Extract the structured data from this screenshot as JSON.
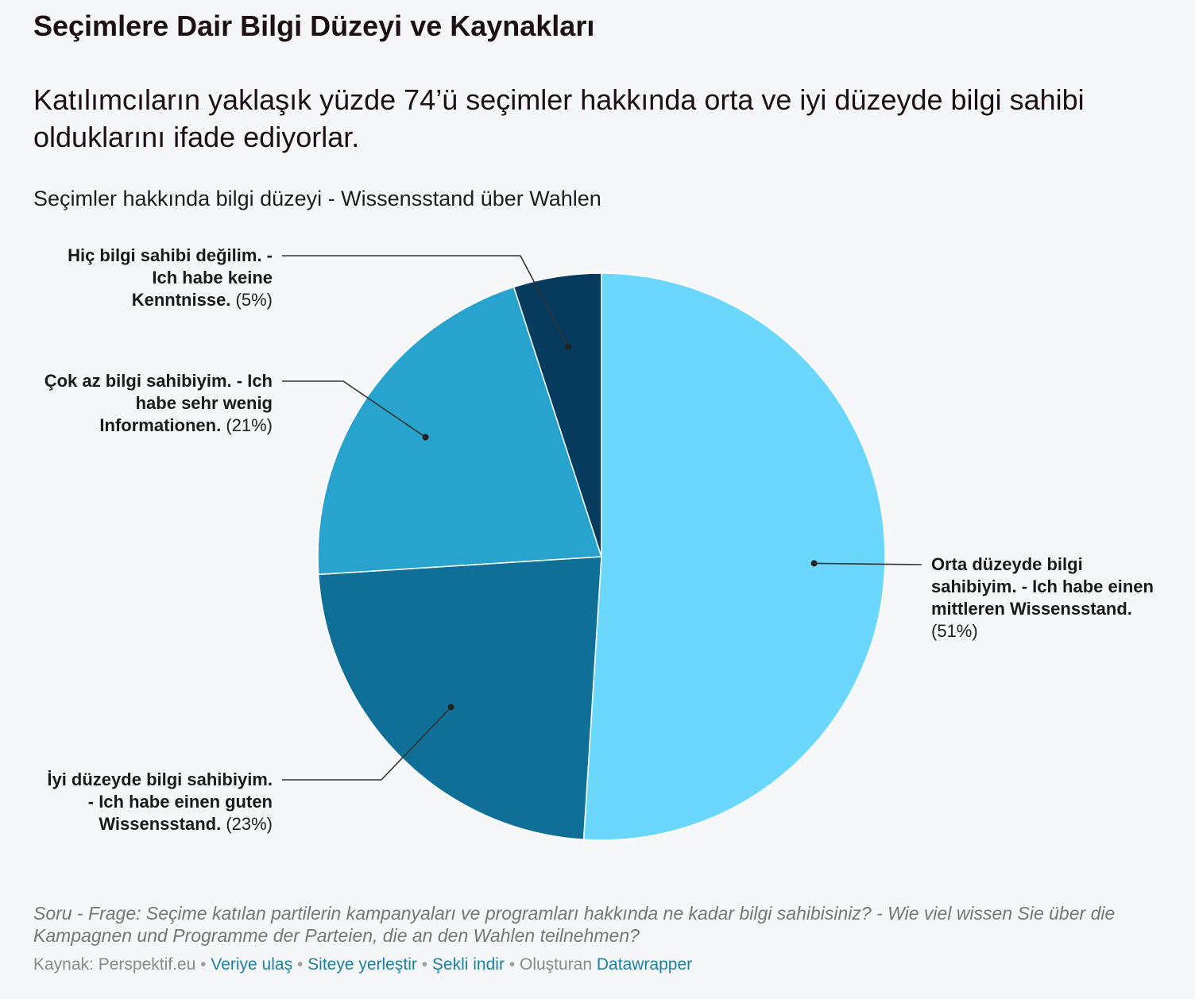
{
  "header": {
    "title": "Seçimlere Dair Bilgi Düzeyi ve Kaynakları",
    "description": "Katılımcıların yaklaşık yüzde 74’ü seçimler hakkında orta ve iyi düzeyde bilgi sahibi olduklarını ifade ediyorlar."
  },
  "chart_data": {
    "type": "pie",
    "title": "Seçimler hakkında bilgi düzeyi - Wissensstand über Wahlen",
    "categories": [
      "Orta düzeyde bilgi sahibiyim. - Ich habe einen mittleren Wissensstand.",
      "İyi düzeyde bilgi sahibiyim. - Ich habe einen guten Wissensstand.",
      "Çok az bilgi sahibiyim. - Ich habe sehr wenig Informationen.",
      "Hiç bilgi sahibi değilim. - Ich habe keine Kenntnisse."
    ],
    "values": [
      51,
      23,
      21,
      5
    ],
    "value_labels": [
      "(51%)",
      "(23%)",
      "(21%)",
      "(5%)"
    ],
    "colors": [
      "#6bd7fd",
      "#0f6f97",
      "#28a3ce",
      "#073b5e"
    ]
  },
  "notes": "Soru - Frage: Seçime katılan partilerin kampanyaları ve programları hakkında ne kadar bilgi sahibisiniz? - Wie viel wissen Sie über die Kampagnen und Programme der Parteien, die an den Wahlen teilnehmen?",
  "footer": {
    "source_label": "Kaynak:",
    "source_name": "Perspektif.eu",
    "separator": "•",
    "links": [
      "Veriye ulaş",
      "Siteye yerleştir",
      "Şekli indir"
    ],
    "created_with_label": "Oluşturan",
    "created_with_name": "Datawrapper"
  },
  "colors": {
    "background": "#f5f7f9",
    "link": "#1d81a2"
  }
}
